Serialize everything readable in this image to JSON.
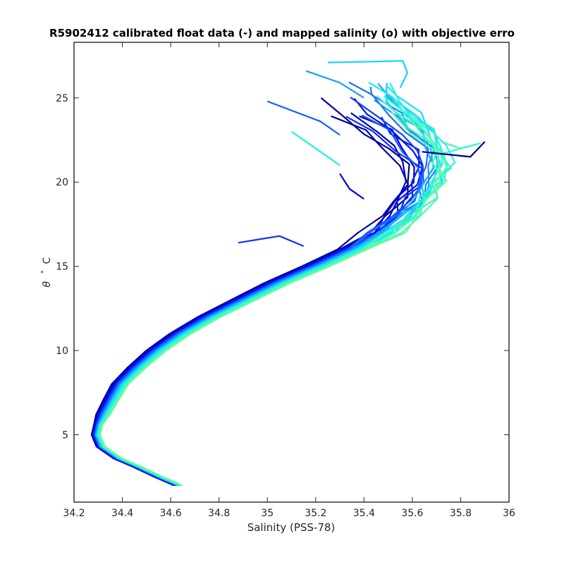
{
  "chart_data": {
    "type": "line",
    "title": "R5902412 calibrated float data (-) and mapped salinity (o) with objective erro",
    "xlabel": "Salinity (PSS-78)",
    "ylabel_symbol": "θ",
    "ylabel_degree": "°",
    "ylabel_unit": "C",
    "xlim": [
      34.2,
      36.0
    ],
    "ylim": [
      1.0,
      28.3
    ],
    "xticks": [
      34.2,
      34.4,
      34.6,
      34.8,
      35.0,
      35.2,
      35.4,
      35.6,
      35.8,
      36.0
    ],
    "xtick_labels": [
      "34.2",
      "34.4",
      "34.6",
      "34.8",
      "35",
      "35.2",
      "35.4",
      "35.6",
      "35.8",
      "36"
    ],
    "yticks": [
      5,
      10,
      15,
      20,
      25
    ],
    "ytick_labels": [
      "5",
      "10",
      "15",
      "20",
      "25"
    ],
    "grid": false,
    "colormap": [
      "#00008f",
      "#0000d8",
      "#0b2dff",
      "#1c6bff",
      "#19a8ff",
      "#12d8ff",
      "#22f0e8",
      "#3cf8c4",
      "#64fc9a"
    ],
    "base_profile": [
      [
        34.63,
        2.0
      ],
      [
        34.55,
        2.5
      ],
      [
        34.46,
        3.1
      ],
      [
        34.38,
        3.6
      ],
      [
        34.31,
        4.3
      ],
      [
        34.29,
        5.0
      ],
      [
        34.3,
        5.6
      ],
      [
        34.32,
        6.2
      ],
      [
        34.35,
        7.0
      ],
      [
        34.39,
        8.0
      ],
      [
        34.46,
        9.0
      ],
      [
        34.54,
        10.0
      ],
      [
        34.64,
        11.0
      ],
      [
        34.76,
        12.0
      ],
      [
        34.9,
        13.0
      ],
      [
        35.04,
        14.0
      ],
      [
        35.2,
        15.0
      ],
      [
        35.35,
        16.0
      ],
      [
        35.47,
        17.0
      ],
      [
        35.56,
        18.0
      ],
      [
        35.62,
        19.0
      ],
      [
        35.66,
        20.0
      ],
      [
        35.68,
        21.0
      ],
      [
        35.64,
        22.0
      ],
      [
        35.58,
        23.0
      ],
      [
        35.5,
        24.0
      ],
      [
        35.42,
        25.0
      ],
      [
        35.36,
        25.8
      ]
    ],
    "series": [
      {
        "offset_mid": -0.06,
        "offset_top": -0.22,
        "top": 25.0
      },
      {
        "offset_mid": -0.07,
        "offset_top": -0.3,
        "top": 24.6
      },
      {
        "offset_mid": -0.05,
        "offset_top": -0.18,
        "top": 24.9
      },
      {
        "offset_mid": -0.04,
        "offset_top": -0.14,
        "top": 24.2
      },
      {
        "offset_mid": -0.05,
        "offset_top": -0.1,
        "top": 25.2
      },
      {
        "offset_mid": -0.03,
        "offset_top": -0.08,
        "top": 24.8
      },
      {
        "offset_mid": -0.03,
        "offset_top": -0.2,
        "top": 24.5
      },
      {
        "offset_mid": -0.02,
        "offset_top": -0.05,
        "top": 25.5
      },
      {
        "offset_mid": -0.02,
        "offset_top": -0.12,
        "top": 24.0
      },
      {
        "offset_mid": -0.01,
        "offset_top": 0.0,
        "top": 25.8
      },
      {
        "offset_mid": 0.0,
        "offset_top": 0.03,
        "top": 26.0
      },
      {
        "offset_mid": 0.0,
        "offset_top": 0.06,
        "top": 25.6
      },
      {
        "offset_mid": 0.01,
        "offset_top": 0.08,
        "top": 26.2
      },
      {
        "offset_mid": 0.01,
        "offset_top": 0.05,
        "top": 25.4
      },
      {
        "offset_mid": 0.02,
        "offset_top": 0.1,
        "top": 26.0
      },
      {
        "offset_mid": 0.02,
        "offset_top": 0.12,
        "top": 25.7
      },
      {
        "offset_mid": 0.03,
        "offset_top": 0.14,
        "top": 26.3
      },
      {
        "offset_mid": 0.03,
        "offset_top": 0.1,
        "top": 25.9
      },
      {
        "offset_mid": 0.04,
        "offset_top": 0.16,
        "top": 26.1
      },
      {
        "offset_mid": 0.04,
        "offset_top": 0.12,
        "top": 25.5
      },
      {
        "offset_mid": 0.05,
        "offset_top": 0.08,
        "top": 25.3
      },
      {
        "offset_mid": 0.05,
        "offset_top": 0.04,
        "top": 25.0
      },
      {
        "offset_mid": 0.06,
        "offset_top": 0.02,
        "top": 24.7
      },
      {
        "offset_mid": 0.06,
        "offset_top": -0.02,
        "top": 24.4
      },
      {
        "offset_mid": 0.07,
        "offset_top": 0.06,
        "top": 24.9
      }
    ],
    "extra_segments": [
      [
        [
          35.0,
          24.8
        ],
        [
          35.22,
          23.6
        ],
        [
          35.3,
          22.8
        ]
      ],
      [
        [
          35.16,
          26.6
        ],
        [
          35.3,
          25.9
        ],
        [
          35.4,
          25.0
        ]
      ],
      [
        [
          35.25,
          27.1
        ],
        [
          35.56,
          27.2
        ],
        [
          35.58,
          26.5
        ],
        [
          35.55,
          25.6
        ]
      ],
      [
        [
          35.1,
          23.0
        ],
        [
          35.22,
          21.8
        ],
        [
          35.3,
          21.0
        ]
      ],
      [
        [
          35.72,
          22.4
        ],
        [
          35.8,
          22.0
        ],
        [
          35.88,
          22.3
        ],
        [
          35.7,
          21.6
        ]
      ],
      [
        [
          35.64,
          21.8
        ],
        [
          35.84,
          21.5
        ],
        [
          35.9,
          22.4
        ]
      ],
      [
        [
          35.3,
          20.5
        ],
        [
          35.34,
          19.6
        ],
        [
          35.4,
          19.0
        ]
      ],
      [
        [
          34.88,
          16.4
        ],
        [
          35.05,
          16.8
        ],
        [
          35.15,
          16.2
        ]
      ]
    ]
  }
}
